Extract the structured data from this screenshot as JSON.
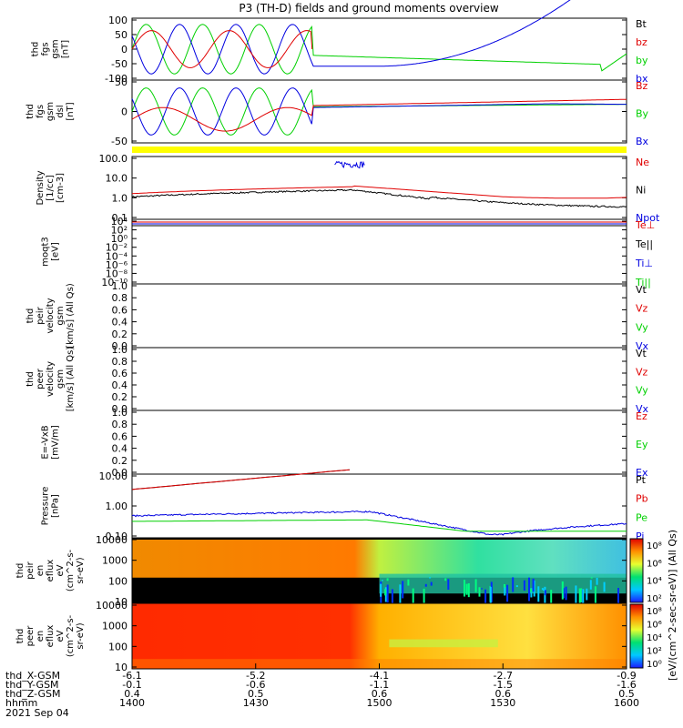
{
  "title": "P3 (TH-D) fields and ground moments overview",
  "date": "2021 Sep 04",
  "colorbar_label": "[eV/(cm^2-sec-sr-eV)] (All Qs)",
  "colors": {
    "black": "#000000",
    "red": "#e00000",
    "green": "#00d000",
    "blue": "#0000e0",
    "yellow": "#ffff00"
  },
  "chart_data": [
    {
      "type": "line",
      "ylabel": [
        "thd",
        "fgs",
        "gsm",
        "[nT]"
      ],
      "yrange": [
        -100,
        100
      ],
      "ticks": [
        "100",
        "50",
        "0",
        "-50",
        "-100"
      ],
      "legend": [
        {
          "label": "Bt",
          "color": "#000000"
        },
        {
          "label": "bz",
          "color": "#e00000"
        },
        {
          "label": "by",
          "color": "#00d000"
        },
        {
          "label": "bx",
          "color": "#0000e0"
        }
      ]
    },
    {
      "type": "line",
      "ylabel": [
        "thd",
        "fgs",
        "gsm",
        "dsl",
        "[nT]"
      ],
      "yrange": [
        -80,
        80
      ],
      "ticks": [
        "50",
        "0",
        "-50"
      ],
      "legend": [
        {
          "label": "Bz",
          "color": "#e00000"
        },
        {
          "label": "By",
          "color": "#00d000"
        },
        {
          "label": "Bx",
          "color": "#0000e0"
        }
      ]
    },
    {
      "type": "line",
      "log": true,
      "ylabel": [
        "Density",
        "[1/cc]",
        "[cm-3]"
      ],
      "yrange": [
        0.03,
        200
      ],
      "ticks": [
        "100.0",
        "10.0",
        "1.0",
        "0.1"
      ],
      "legend": [
        {
          "label": "Ne",
          "color": "#e00000"
        },
        {
          "label": "Ni",
          "color": "#000000"
        },
        {
          "label": "Npot",
          "color": "#0000e0"
        }
      ]
    },
    {
      "type": "line",
      "log": true,
      "ylabel": [
        "moqt3",
        "[eV]"
      ],
      "ticks": [
        "10⁴",
        "10²",
        "10⁰",
        "10⁻²",
        "10⁻⁴",
        "10⁻⁶",
        "10⁻⁸",
        "10⁻¹⁰"
      ],
      "legend": [
        {
          "label": "Te⊥",
          "color": "#e00000"
        },
        {
          "label": "Te||",
          "color": "#000000"
        },
        {
          "label": "Ti⊥",
          "color": "#0000e0"
        },
        {
          "label": "Ti||",
          "color": "#00d000"
        }
      ]
    },
    {
      "type": "line",
      "ylabel": [
        "thd",
        "peir",
        "velocity",
        "gsm",
        "[km/s] (All Qs)"
      ],
      "yrange": [
        0,
        1
      ],
      "ticks": [
        "1.0",
        "0.8",
        "0.6",
        "0.4",
        "0.2",
        "0.0"
      ],
      "legend": [
        {
          "label": "Vt",
          "color": "#000000"
        },
        {
          "label": "Vz",
          "color": "#e00000"
        },
        {
          "label": "Vy",
          "color": "#00d000"
        },
        {
          "label": "Vx",
          "color": "#0000e0"
        }
      ]
    },
    {
      "type": "line",
      "ylabel": [
        "thd",
        "peer",
        "velocity",
        "gsm",
        "[km/s] (All Qs)"
      ],
      "yrange": [
        0,
        1
      ],
      "ticks": [
        "1.0",
        "0.8",
        "0.6",
        "0.4",
        "0.2",
        "0.0"
      ],
      "legend": [
        {
          "label": "Vt",
          "color": "#000000"
        },
        {
          "label": "Vz",
          "color": "#e00000"
        },
        {
          "label": "Vy",
          "color": "#00d000"
        },
        {
          "label": "Vx",
          "color": "#0000e0"
        }
      ]
    },
    {
      "type": "line",
      "ylabel": [
        "E=-VxB",
        "[mV/m]"
      ],
      "yrange": [
        0,
        1
      ],
      "ticks": [
        "1.0",
        "0.8",
        "0.6",
        "0.4",
        "0.2",
        "0.0"
      ],
      "legend": [
        {
          "label": "Ez",
          "color": "#e00000"
        },
        {
          "label": "Ey",
          "color": "#00d000"
        },
        {
          "label": "Ex",
          "color": "#0000e0"
        }
      ]
    },
    {
      "type": "line",
      "log": true,
      "ylabel": [
        "Pressure",
        "[nPa]"
      ],
      "yrange": [
        0.025,
        20
      ],
      "ticks": [
        "10.00",
        "1.00",
        "0.10"
      ],
      "legend": [
        {
          "label": "Pt",
          "color": "#000000"
        },
        {
          "label": "Pb",
          "color": "#e00000"
        },
        {
          "label": "Pe",
          "color": "#00d000"
        },
        {
          "label": "Pi",
          "color": "#0000e0"
        }
      ]
    },
    {
      "type": "heatmap",
      "ylabel": [
        "thd",
        "peir",
        "en",
        "eflux",
        "eV",
        "(cm^2-s-",
        "sr-eV)"
      ],
      "ticks": [
        "10000",
        "1000",
        "100",
        "10"
      ],
      "colorbar_ticks": [
        "10⁸",
        "10⁶",
        "10⁴",
        "10²"
      ]
    },
    {
      "type": "heatmap",
      "ylabel": [
        "thd",
        "peer",
        "en",
        "eflux",
        "eV",
        "(cm^2-s-",
        "sr-eV)"
      ],
      "ticks": [
        "10000",
        "1000",
        "100",
        "10"
      ],
      "colorbar_ticks": [
        "10⁸",
        "10⁶",
        "10⁴",
        "10²",
        "10⁰"
      ]
    }
  ],
  "x_axis": {
    "rows": [
      {
        "label": "thd_X-GSM",
        "values": [
          "-6.1",
          "-5.2",
          "-4.1",
          "-2.7",
          "-0.9"
        ]
      },
      {
        "label": "thd_Y-GSM",
        "values": [
          "-0.1",
          "-0.6",
          "-1.1",
          "-1.5",
          "-1.6"
        ]
      },
      {
        "label": "thd_Z-GSM",
        "values": [
          "0.4",
          "0.5",
          "0.6",
          "0.6",
          "0.5"
        ]
      },
      {
        "label": "hhmm",
        "values": [
          "1400",
          "1430",
          "1500",
          "1530",
          "1600"
        ]
      }
    ]
  }
}
